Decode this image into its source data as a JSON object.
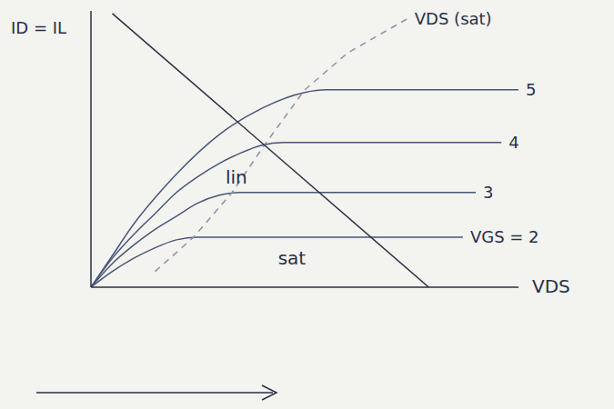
{
  "chart_data": {
    "type": "line",
    "x_label": "VDS",
    "y_label": "ID = IL",
    "tick_labels": false,
    "grid": false,
    "xlim": [
      0,
      10
    ],
    "ylim": [
      0,
      10.5
    ],
    "series": [
      {
        "name": "5",
        "color": "#4a5578",
        "x": [
          0,
          0.5,
          1,
          1.5,
          2,
          3,
          4,
          5,
          5.5,
          7,
          10
        ],
        "values": [
          0,
          1.2,
          2.4,
          3.4,
          4.3,
          5.8,
          6.8,
          7.4,
          7.5,
          7.5,
          7.5
        ]
      },
      {
        "name": "4",
        "color": "#4a5578",
        "x": [
          0,
          0.5,
          1,
          1.5,
          2,
          2.5,
          3,
          3.5,
          4,
          4.5,
          6,
          9.6
        ],
        "values": [
          0,
          1.1,
          2.0,
          2.8,
          3.6,
          4.2,
          4.7,
          5.1,
          5.4,
          5.5,
          5.5,
          5.5
        ]
      },
      {
        "name": "3",
        "color": "#4a5578",
        "x": [
          0,
          0.5,
          1,
          1.5,
          2,
          2.5,
          3,
          3.5,
          5,
          9
        ],
        "values": [
          0,
          0.9,
          1.6,
          2.2,
          2.7,
          3.2,
          3.5,
          3.6,
          3.6,
          3.6
        ]
      },
      {
        "name": "VGS = 2",
        "color": "#4a5578",
        "x": [
          0,
          0.5,
          1,
          1.5,
          2,
          2.5,
          3,
          5,
          8.7
        ],
        "values": [
          0,
          0.6,
          1.1,
          1.5,
          1.8,
          1.9,
          1.9,
          1.9,
          1.9
        ]
      },
      {
        "name": "VDS (sat)",
        "color": "#8a90a8",
        "line_style": "dashed",
        "x": [
          1.5,
          2.4,
          3.3,
          4.1,
          5,
          6,
          7.4
        ],
        "values": [
          0.6,
          1.9,
          3.6,
          5.5,
          7.5,
          8.9,
          10.2
        ]
      },
      {
        "color": "#2a2f45",
        "line_style": "solid",
        "x": [
          0.5,
          7.9
        ],
        "values": [
          10.4,
          0
        ]
      }
    ],
    "annotations": [
      {
        "text": "lin",
        "x": 3.4,
        "y": 4.2
      },
      {
        "text": "sat",
        "x": 4.7,
        "y": 1.1
      }
    ]
  }
}
